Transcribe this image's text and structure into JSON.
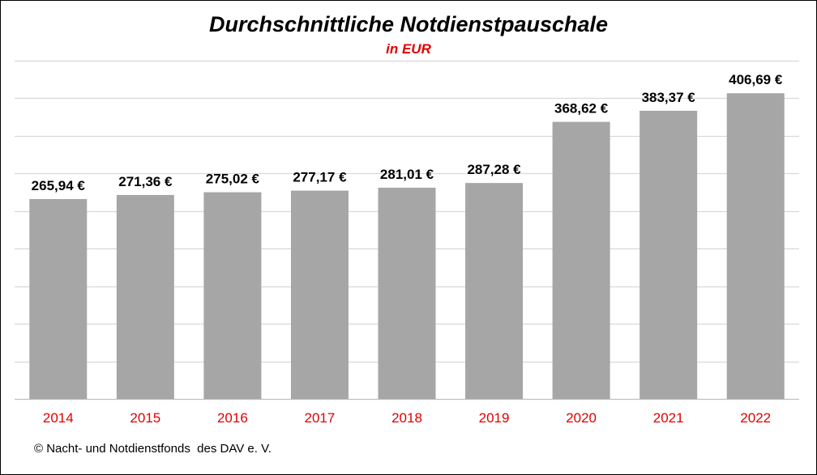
{
  "chart_data": {
    "type": "bar",
    "title": "Durchschnittliche Notdienstpauschale",
    "subtitle": "in EUR",
    "categories": [
      "2014",
      "2015",
      "2016",
      "2017",
      "2018",
      "2019",
      "2020",
      "2021",
      "2022"
    ],
    "values": [
      265.94,
      271.36,
      275.02,
      277.17,
      281.01,
      287.28,
      368.62,
      383.37,
      406.69
    ],
    "data_labels": [
      "265,94 €",
      "271,36 €",
      "275,02 €",
      "277,17 €",
      "281,01 €",
      "287,28 €",
      "368,62 €",
      "383,37 €",
      "406,69 €"
    ],
    "ylim": [
      0,
      450
    ],
    "grid": true,
    "colors": {
      "bar": "#a6a6a6",
      "category_label": "#e00000",
      "subtitle": "#e00000",
      "gridline": "#d9d9d9"
    }
  },
  "footer": {
    "copyright": "© Nacht- und Notdienstfonds  des DAV e. V."
  }
}
